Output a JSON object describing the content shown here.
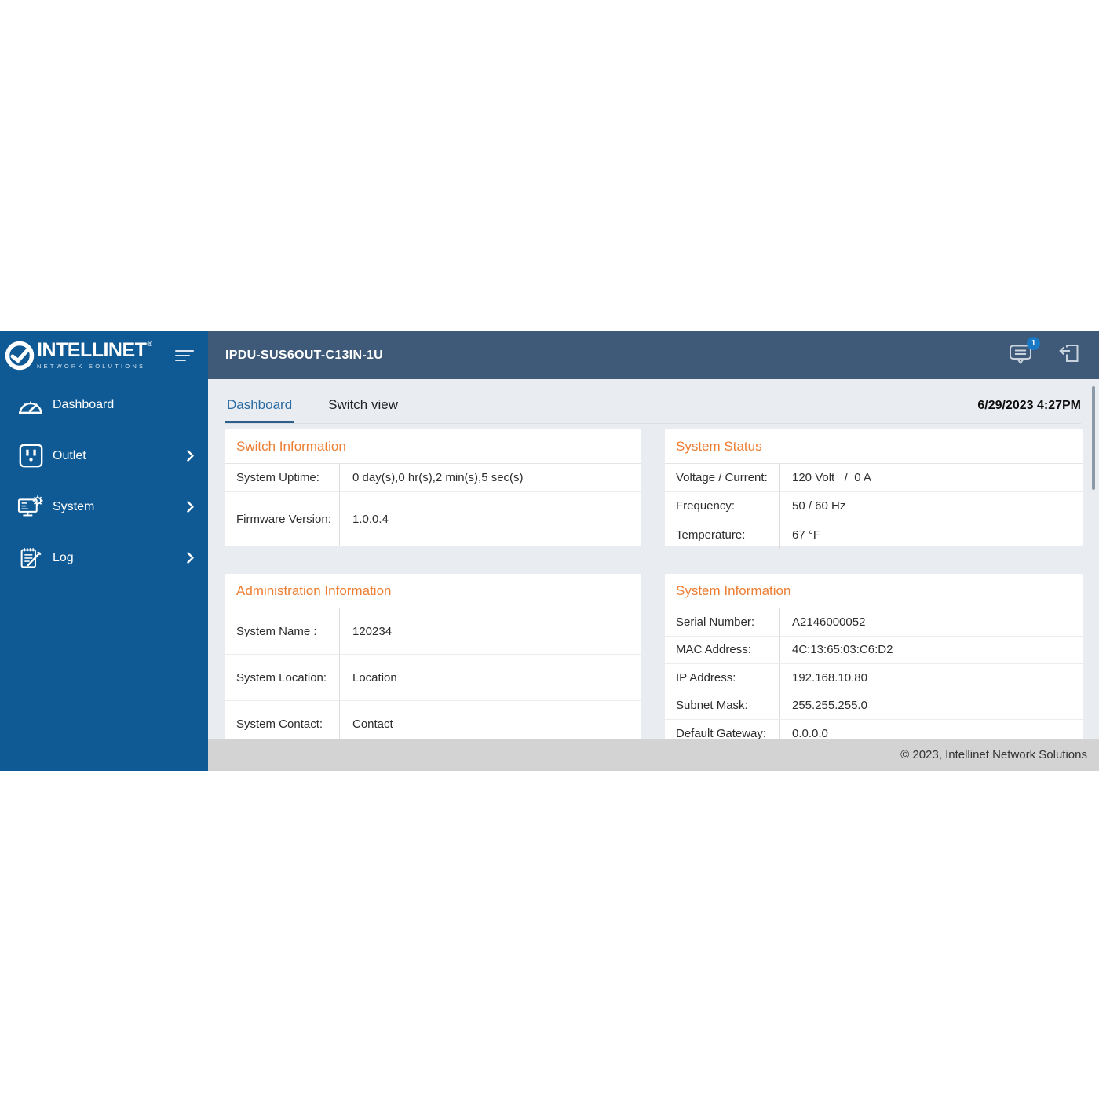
{
  "colors": {
    "sidebar_blue": "#0f5a94",
    "header_slate": "#3e5a78",
    "content_bg": "#e9edf1",
    "accent_orange": "#ed7d31",
    "tab_active_blue": "#2d6ca2",
    "badge_blue": "#1a79c4",
    "footer_gray": "#d3d3d3"
  },
  "sidebar": {
    "logo": {
      "brand": "INTELLINET",
      "registered": "®",
      "tagline": "NETWORK SOLUTIONS",
      "mark_icon": "check-circle-logo-icon"
    },
    "menu_icon": "menu-icon",
    "items": [
      {
        "label": "Dashboard",
        "icon": "gauge-icon",
        "has_chevron": false,
        "active": true
      },
      {
        "label": "Outlet",
        "icon": "outlet-icon",
        "has_chevron": true,
        "active": false
      },
      {
        "label": "System",
        "icon": "system-icon",
        "has_chevron": true,
        "active": false
      },
      {
        "label": "Log",
        "icon": "log-icon",
        "has_chevron": true,
        "active": false
      }
    ]
  },
  "header": {
    "title": "IPDU-SUS6OUT-C13IN-1U",
    "message_icon": "message-icon",
    "notification_count": "1",
    "logout_icon": "logout-icon"
  },
  "tabs": [
    {
      "label": "Dashboard",
      "active": true
    },
    {
      "label": "Switch view",
      "active": false
    }
  ],
  "datetime": "6/29/2023 4:27PM",
  "cards": [
    {
      "title": "Switch Information",
      "rows": [
        [
          "System Uptime:",
          "0 day(s),0 hr(s),2 min(s),5 sec(s)"
        ],
        [
          "Firmware Version:",
          "1.0.0.4"
        ]
      ]
    },
    {
      "title": "System Status",
      "rows": [
        [
          "Voltage / Current:",
          "120 Volt   /  0 A"
        ],
        [
          "Frequency:",
          "50 / 60 Hz"
        ],
        [
          "Temperature:",
          "67 °F"
        ]
      ]
    },
    {
      "title": "Administration Information",
      "rows": [
        [
          "System Name :",
          "120234"
        ],
        [
          "System Location:",
          "Location"
        ],
        [
          "System Contact:",
          "Contact"
        ]
      ]
    },
    {
      "title": "System Information",
      "rows": [
        [
          "Serial Number:",
          "A2146000052"
        ],
        [
          "MAC Address:",
          "4C:13:65:03:C6:D2"
        ],
        [
          "IP Address:",
          "192.168.10.80"
        ],
        [
          "Subnet Mask:",
          "255.255.255.0"
        ],
        [
          "Default Gateway:",
          "0.0.0.0"
        ]
      ]
    }
  ],
  "footer": {
    "copyright": "© 2023, Intellinet Network Solutions"
  }
}
